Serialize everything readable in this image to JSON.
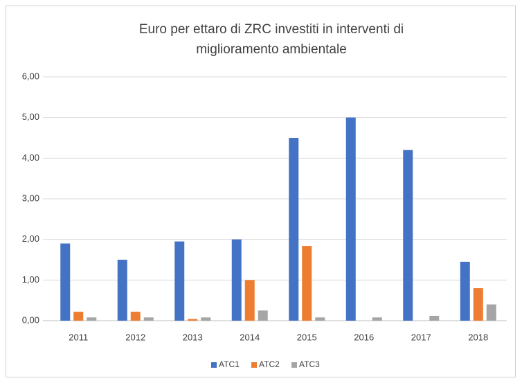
{
  "chart_data": {
    "type": "bar",
    "title": [
      "Euro per ettaro di ZRC investiti in interventi di",
      "miglioramento ambientale"
    ],
    "categories": [
      "2011",
      "2012",
      "2013",
      "2014",
      "2015",
      "2016",
      "2017",
      "2018"
    ],
    "series": [
      {
        "name": "ATC1",
        "color": "#4472c4",
        "values": [
          1.9,
          1.5,
          1.95,
          2.0,
          4.5,
          5.0,
          4.2,
          1.45
        ]
      },
      {
        "name": "ATC2",
        "color": "#ed7d31",
        "values": [
          0.22,
          0.22,
          0.04,
          1.0,
          1.84,
          0,
          0,
          0.8
        ]
      },
      {
        "name": "ATC3",
        "color": "#a5a5a5",
        "values": [
          0.08,
          0.08,
          0.08,
          0.25,
          0.08,
          0.08,
          0.12,
          0.4
        ]
      }
    ],
    "ylim": [
      0,
      6
    ],
    "yticks": [
      {
        "value": 0,
        "label": "0,00"
      },
      {
        "value": 1,
        "label": "1,00"
      },
      {
        "value": 2,
        "label": "2,00"
      },
      {
        "value": 3,
        "label": "3,00"
      },
      {
        "value": 4,
        "label": "4,00"
      },
      {
        "value": 5,
        "label": "5,00"
      },
      {
        "value": 6,
        "label": "6,00"
      }
    ],
    "grid": true,
    "legend": "bottom"
  }
}
